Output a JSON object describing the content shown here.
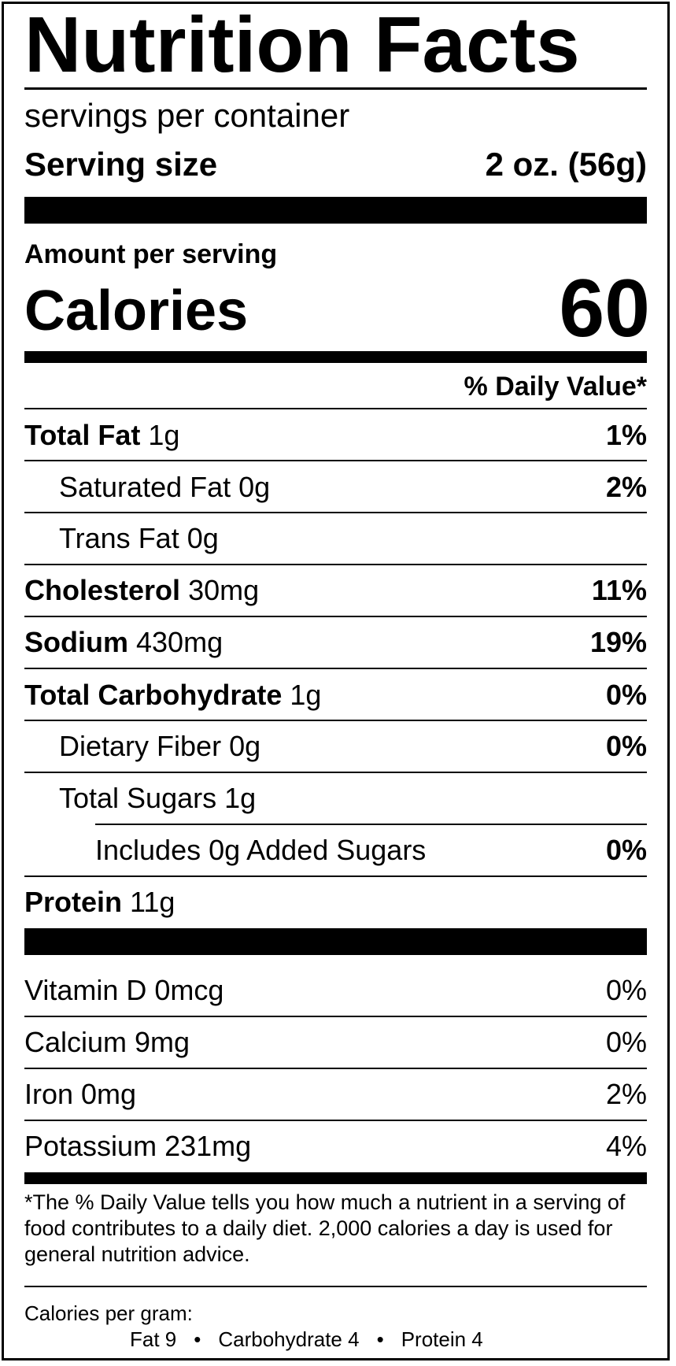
{
  "title": "Nutrition Facts",
  "servings_text": "servings per container",
  "serving_size": {
    "label": "Serving size",
    "value": "2 oz. (56g)"
  },
  "amount_per_serving": "Amount per serving",
  "calories": {
    "label": "Calories",
    "value": "60"
  },
  "daily_value_header": "% Daily Value*",
  "nutrients": [
    {
      "name": "Total Fat",
      "amount": "1g",
      "dv": "1%"
    },
    {
      "name": "Saturated Fat",
      "amount": "0g",
      "dv": "2%"
    },
    {
      "name": "Trans Fat",
      "amount": "0g",
      "dv": ""
    },
    {
      "name": "Cholesterol",
      "amount": "30mg",
      "dv": "11%"
    },
    {
      "name": "Sodium",
      "amount": "430mg",
      "dv": "19%"
    },
    {
      "name": "Total Carbohydrate",
      "amount": "1g",
      "dv": "0%"
    },
    {
      "name": "Dietary Fiber",
      "amount": "0g",
      "dv": "0%"
    },
    {
      "name": "Total Sugars",
      "amount": "1g",
      "dv": ""
    },
    {
      "name": "Includes 0g Added Sugars",
      "amount": "",
      "dv": "0%"
    },
    {
      "name": "Protein",
      "amount": "11g",
      "dv": ""
    }
  ],
  "vitamins": [
    {
      "label": "Vitamin D 0mcg",
      "dv": "0%"
    },
    {
      "label": "Calcium 9mg",
      "dv": "0%"
    },
    {
      "label": "Iron 0mg",
      "dv": "2%"
    },
    {
      "label": "Potassium 231mg",
      "dv": "4%"
    }
  ],
  "footnote": "*The % Daily Value tells you how much a nutrient in a serving of food contributes to a daily diet. 2,000 calories a day is used for general nutrition advice.",
  "calories_per_gram": {
    "label": "Calories per gram:",
    "fat": "Fat 9",
    "carbohydrate": "Carbohydrate 4",
    "protein": "Protein 4",
    "separator": "•"
  }
}
